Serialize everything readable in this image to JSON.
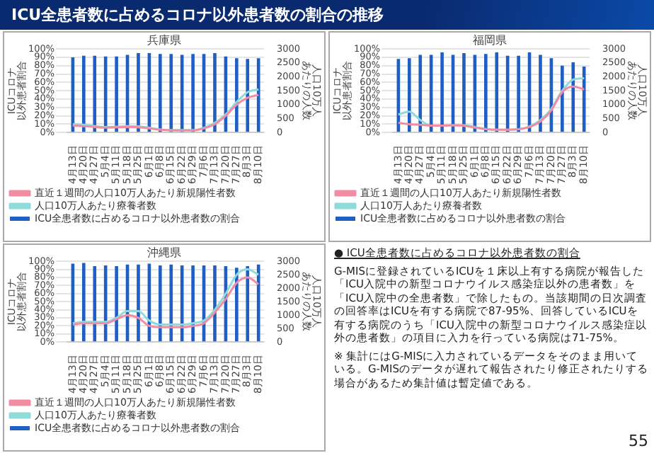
{
  "chart_data": [
    {
      "type": "bar",
      "title": "兵庫県",
      "ylabel": "ICUコロナ以外患者割合",
      "y2label": "人口10万人あたりの人数",
      "categories": [
        "4月13日",
        "4月20日",
        "4月27日",
        "5月4日",
        "5月11日",
        "5月18日",
        "5月25日",
        "6月1日",
        "6月8日",
        "6月15日",
        "6月22日",
        "6月29日",
        "7月6日",
        "7月13日",
        "7月20日",
        "7月27日",
        "8月3日",
        "8月10日"
      ],
      "series": [
        {
          "name": "ICU全患者数に占めるコロナ以外患者数の割合",
          "type": "bar",
          "color": "#1f5fc4",
          "values": [
            90,
            92,
            92,
            91,
            91,
            93,
            95,
            95,
            94,
            94,
            93,
            94,
            94,
            95,
            91,
            89,
            88,
            89
          ]
        },
        {
          "name": "直近１週間の人口10万人あたり新規陽性者数",
          "type": "line",
          "axis": "y2",
          "color": "#f28ca2",
          "values": [
            250,
            230,
            200,
            180,
            190,
            200,
            190,
            150,
            100,
            80,
            80,
            80,
            150,
            300,
            600,
            1000,
            1250,
            1350
          ]
        },
        {
          "name": "人口10万人あたり療養者数",
          "type": "line",
          "axis": "y2",
          "color": "#8fdada",
          "values": [
            300,
            280,
            230,
            200,
            210,
            230,
            220,
            170,
            110,
            90,
            90,
            90,
            170,
            350,
            650,
            1100,
            1450,
            1550
          ]
        }
      ],
      "ylim": [
        0,
        100
      ],
      "yticks": [
        {
          "value": 0,
          "label": "0%"
        },
        {
          "value": 10,
          "label": "10%"
        },
        {
          "value": 20,
          "label": "20%"
        },
        {
          "value": 30,
          "label": "30%"
        },
        {
          "value": 40,
          "label": "40%"
        },
        {
          "value": 50,
          "label": "50%"
        },
        {
          "value": 60,
          "label": "60%"
        },
        {
          "value": 70,
          "label": "70%"
        },
        {
          "value": 80,
          "label": "80%"
        },
        {
          "value": 90,
          "label": "90%"
        },
        {
          "value": 100,
          "label": "100%"
        }
      ],
      "y2lim": [
        0,
        3000
      ],
      "y2ticks": [
        0,
        500,
        1000,
        1500,
        2000,
        2500,
        3000
      ],
      "grid": "y",
      "legend": "bottom",
      "marker": "none"
    },
    {
      "type": "bar",
      "title": "福岡県",
      "ylabel": "ICUコロナ以外患者割合",
      "y2label": "人口10万人あたりの人数",
      "categories": [
        "4月13日",
        "4月20日",
        "4月27日",
        "5月4日",
        "5月11日",
        "5月18日",
        "5月25日",
        "6月1日",
        "6月8日",
        "6月15日",
        "6月22日",
        "6月29日",
        "7月6日",
        "7月13日",
        "7月20日",
        "7月27日",
        "8月3日",
        "8月10日"
      ],
      "series": [
        {
          "name": "ICU全患者数に占めるコロナ以外患者数の割合",
          "type": "bar",
          "color": "#1f5fc4",
          "values": [
            88,
            89,
            93,
            93,
            96,
            93,
            95,
            93,
            94,
            96,
            92,
            92,
            96,
            93,
            89,
            80,
            84,
            79
          ]
        },
        {
          "name": "直近１週間の人口10万人あたり新規陽性者数",
          "type": "line",
          "axis": "y2",
          "color": "#f28ca2",
          "values": [
            350,
            300,
            280,
            250,
            250,
            260,
            240,
            180,
            120,
            100,
            100,
            120,
            200,
            400,
            800,
            1450,
            1650,
            1550
          ]
        },
        {
          "name": "人口10万人あたり療養者数",
          "type": "line",
          "axis": "y2",
          "color": "#8fdada",
          "values": [
            650,
            750,
            450,
            250,
            250,
            260,
            260,
            200,
            130,
            100,
            100,
            120,
            220,
            450,
            850,
            1500,
            1900,
            1950
          ]
        }
      ],
      "ylim": [
        0,
        100
      ],
      "yticks": [
        {
          "value": 0,
          "label": "0%"
        },
        {
          "value": 10,
          "label": "10%"
        },
        {
          "value": 20,
          "label": "20%"
        },
        {
          "value": 30,
          "label": "30%"
        },
        {
          "value": 40,
          "label": "40%"
        },
        {
          "value": 50,
          "label": "50%"
        },
        {
          "value": 60,
          "label": "60%"
        },
        {
          "value": 70,
          "label": "70%"
        },
        {
          "value": 80,
          "label": "80%"
        },
        {
          "value": 90,
          "label": "90%"
        },
        {
          "value": 100,
          "label": "100%"
        }
      ],
      "y2lim": [
        0,
        3000
      ],
      "y2ticks": [
        0,
        500,
        1000,
        1500,
        2000,
        2500,
        3000
      ],
      "grid": "y",
      "legend": "bottom",
      "marker": "none"
    },
    {
      "type": "bar",
      "title": "沖縄県",
      "ylabel": "ICUコロナ以外患者割合",
      "y2label": "人口10万人あたりの人数",
      "categories": [
        "4月13日",
        "4月20日",
        "4月27日",
        "5月4日",
        "5月11日",
        "5月18日",
        "5月25日",
        "6月1日",
        "6月8日",
        "6月15日",
        "6月22日",
        "6月29日",
        "7月6日",
        "7月13日",
        "7月20日",
        "7月27日",
        "8月3日",
        "8月10日"
      ],
      "series": [
        {
          "name": "ICU全患者数に占めるコロナ以外患者数の割合",
          "type": "bar",
          "color": "#1f5fc4",
          "values": [
            97,
            98,
            94,
            95,
            94,
            96,
            96,
            97,
            95,
            96,
            95,
            95,
            95,
            95,
            94,
            92,
            94,
            96
          ]
        },
        {
          "name": "直近１週間の人口10万人あたり新規陽性者数",
          "type": "line",
          "axis": "y2",
          "color": "#f28ca2",
          "values": [
            650,
            700,
            700,
            700,
            850,
            1000,
            900,
            600,
            550,
            550,
            550,
            600,
            700,
            1100,
            1600,
            2200,
            2400,
            2150
          ]
        },
        {
          "name": "人口10万人あたり療養者数",
          "type": "line",
          "axis": "y2",
          "color": "#8fdada",
          "values": [
            700,
            750,
            750,
            750,
            900,
            1150,
            1150,
            800,
            650,
            650,
            650,
            700,
            800,
            1200,
            1800,
            2500,
            2700,
            2500
          ]
        }
      ],
      "ylim": [
        0,
        100
      ],
      "yticks": [
        {
          "value": 0,
          "label": "0%"
        },
        {
          "value": 10,
          "label": "10%"
        },
        {
          "value": 20,
          "label": "20%"
        },
        {
          "value": 30,
          "label": "30%"
        },
        {
          "value": 40,
          "label": "40%"
        },
        {
          "value": 50,
          "label": "50%"
        },
        {
          "value": 60,
          "label": "60%"
        },
        {
          "value": 70,
          "label": "70%"
        },
        {
          "value": 80,
          "label": "80%"
        },
        {
          "value": 90,
          "label": "90%"
        },
        {
          "value": 100,
          "label": "100%"
        }
      ],
      "y2lim": [
        0,
        3000
      ],
      "y2ticks": [
        0,
        500,
        1000,
        1500,
        2000,
        2500,
        3000
      ],
      "grid": "y",
      "legend": "bottom",
      "marker": "none"
    },
    {
      "type": "other",
      "title": "ICU全患者数に占めるコロナ以外患者数の割合の推移",
      "annotations": [
        "● ICU全患者数に占めるコロナ以外患者数の割合",
        "G-MISに登録されているICUを１床以上有する病院が報告した「ICU入院中の新型コロナウイルス感染症以外の患者数」を「ICU入院中の全患者数」で除したもの。当該期間の日次調査の回答率はICUを有する病院で87-95%、回答しているICUを有する病院のうち「ICU入院中の新型コロナウイルス感染症以外の患者数」の項目に入力を行っている病院は71-75%。",
        "※ 集計にはG-MISに入力されているデータをそのまま用いている。G-MISのデータが遅れて報告されたり修正されたりする場合があるため集計値は暫定値である。",
        "55"
      ]
    }
  ]
}
